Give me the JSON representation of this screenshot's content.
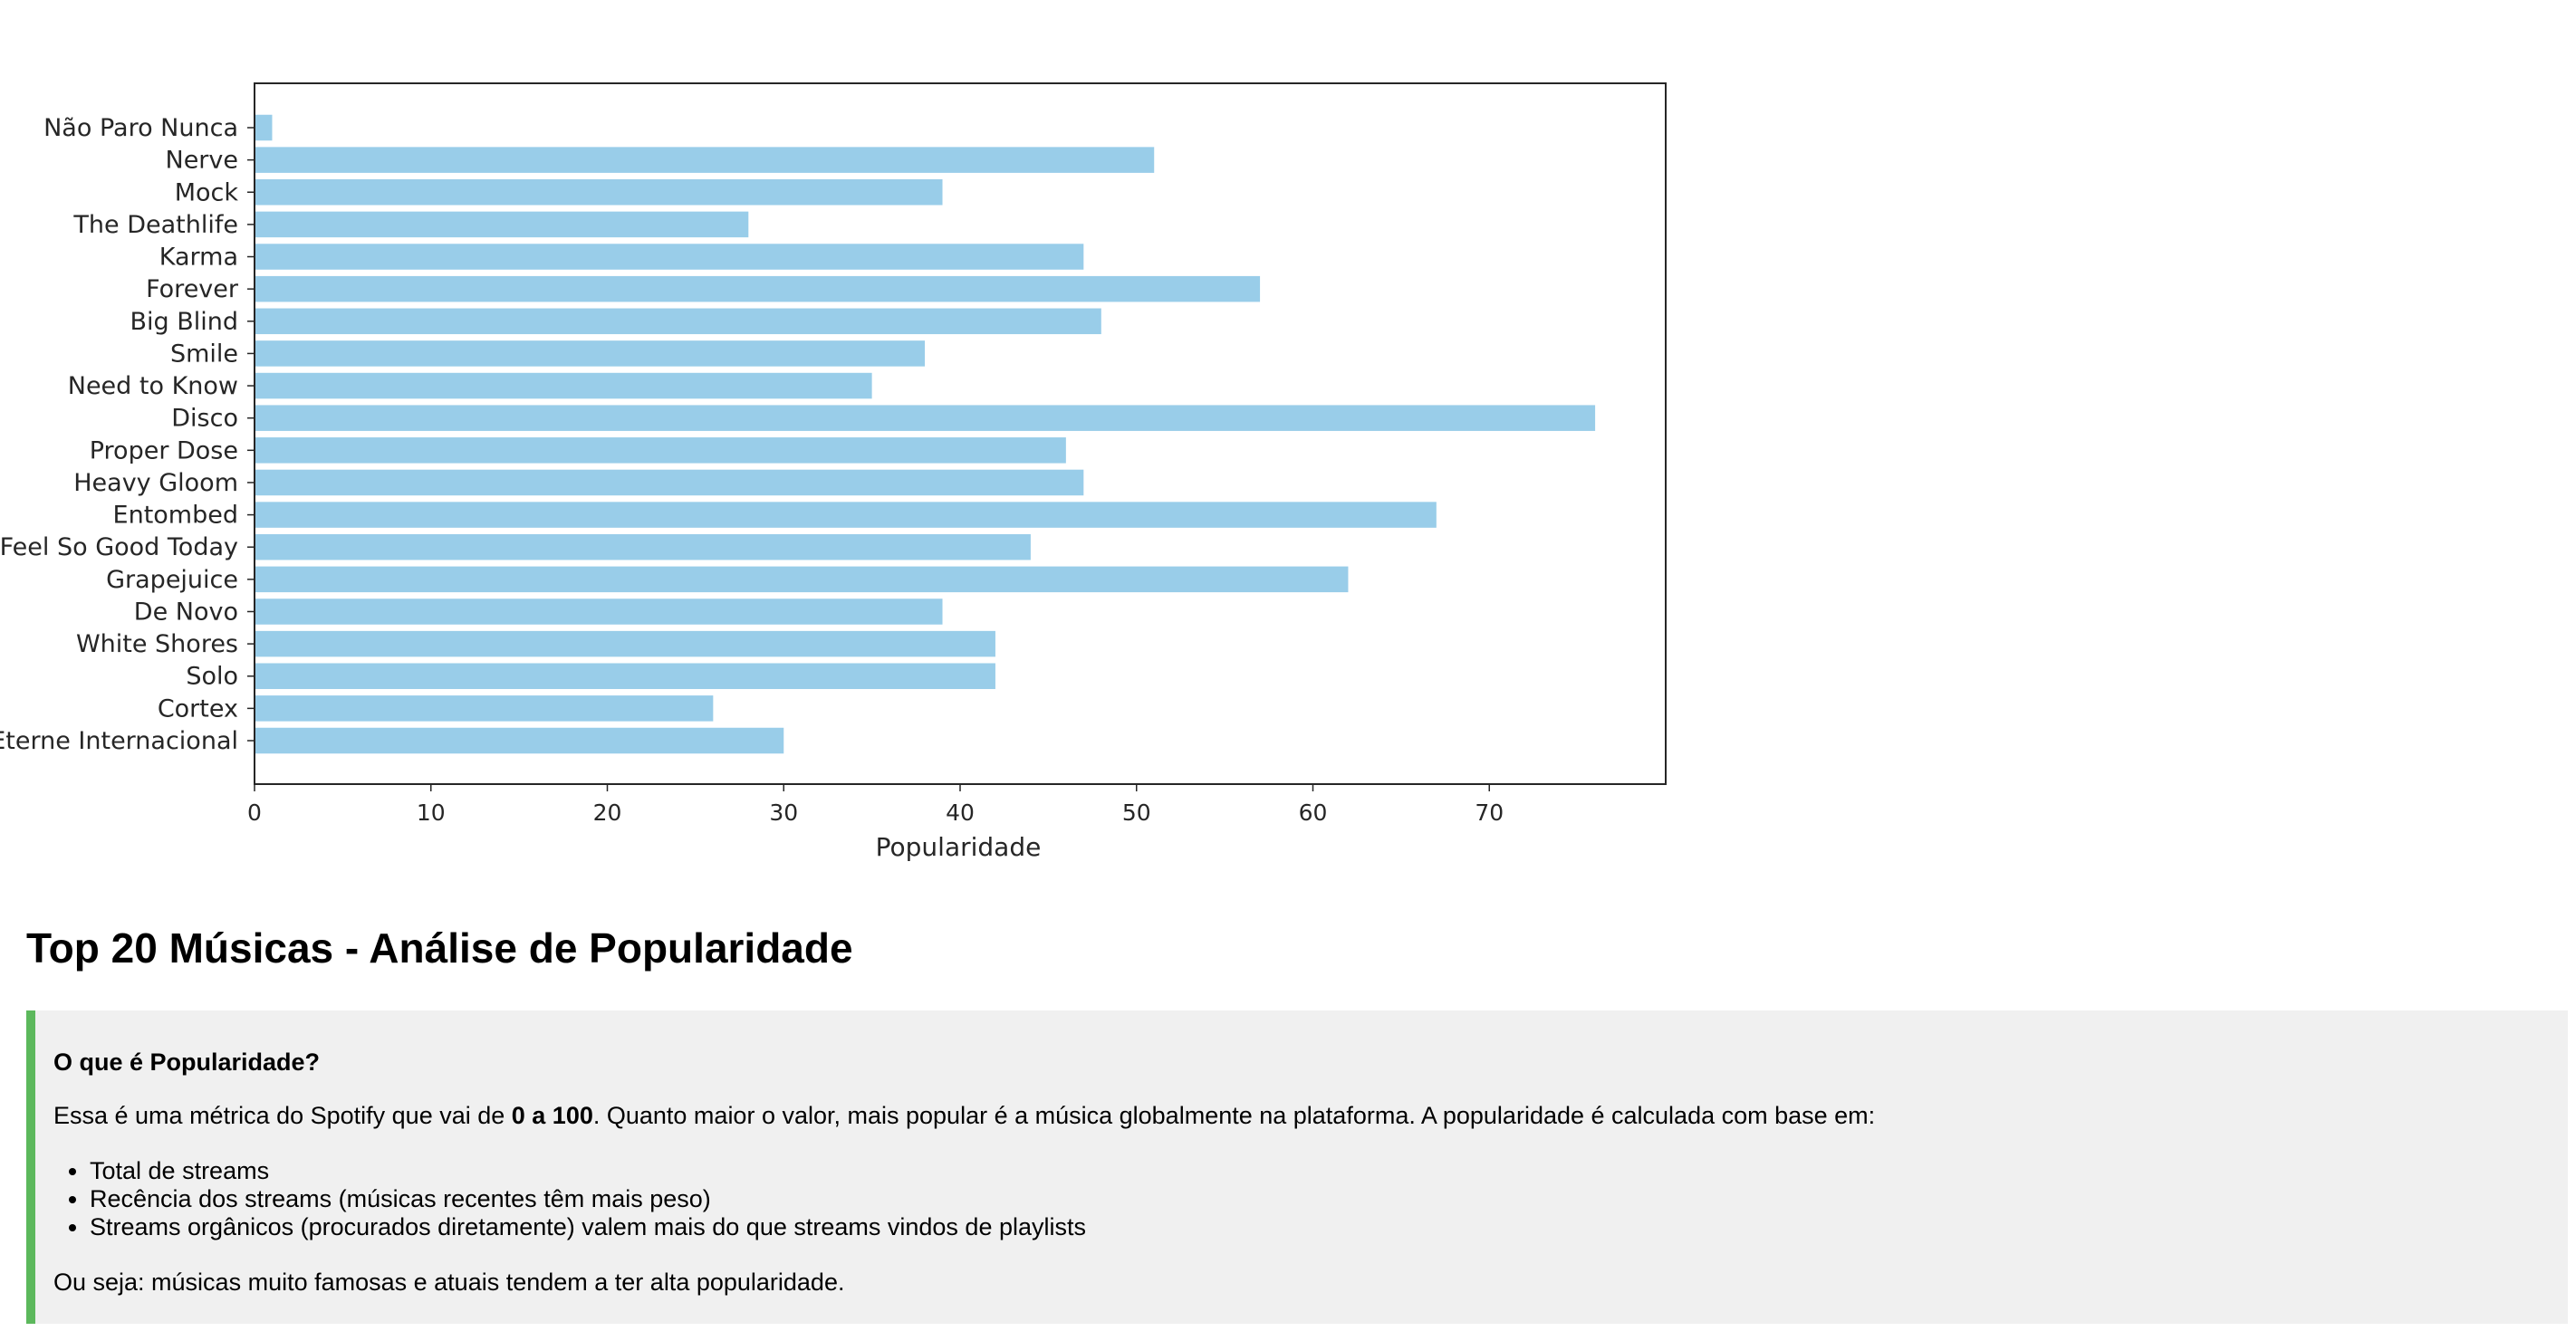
{
  "chart_data": {
    "type": "bar",
    "orientation": "horizontal",
    "categories": [
      "Não Paro Nunca",
      "Nerve",
      "Mock",
      "The Deathlife",
      "Karma",
      "Forever",
      "Big Blind",
      "Smile",
      "Need to Know",
      "Disco",
      "Proper Dose",
      "Heavy Gloom",
      "Entombed",
      "I Feel So Good Today",
      "Grapejuice",
      "De Novo",
      "White Shores",
      "Solo",
      "Cortex",
      "Eterne Internacional"
    ],
    "values": [
      1,
      51,
      39,
      28,
      47,
      57,
      48,
      38,
      35,
      76,
      46,
      47,
      67,
      44,
      62,
      39,
      42,
      42,
      26,
      30
    ],
    "xlabel": "Popularidade",
    "ylabel": "",
    "xlim": [
      0,
      80
    ],
    "xticks": [
      0,
      10,
      20,
      30,
      40,
      50,
      60,
      70
    ],
    "bar_color": "#99cde9",
    "grid": false
  },
  "page": {
    "title": "Top 20 Músicas - Análise de Popularidade",
    "info": {
      "heading": "O que é Popularidade?",
      "intro_before": "Essa é uma métrica do Spotify que vai de ",
      "intro_bold": "0 a 100",
      "intro_after": ". Quanto maior o valor, mais popular é a música globalmente na plataforma. A popularidade é calculada com base em:",
      "bullets": [
        "Total de streams",
        "Recência dos streams (músicas recentes têm mais peso)",
        "Streams orgânicos (procurados diretamente) valem mais do que streams vindos de playlists"
      ],
      "conclusion": "Ou seja: músicas muito famosas e atuais tendem a ter alta popularidade."
    },
    "colors": {
      "accent_border": "#5cb85c",
      "box_background": "#f0f0f0"
    }
  }
}
